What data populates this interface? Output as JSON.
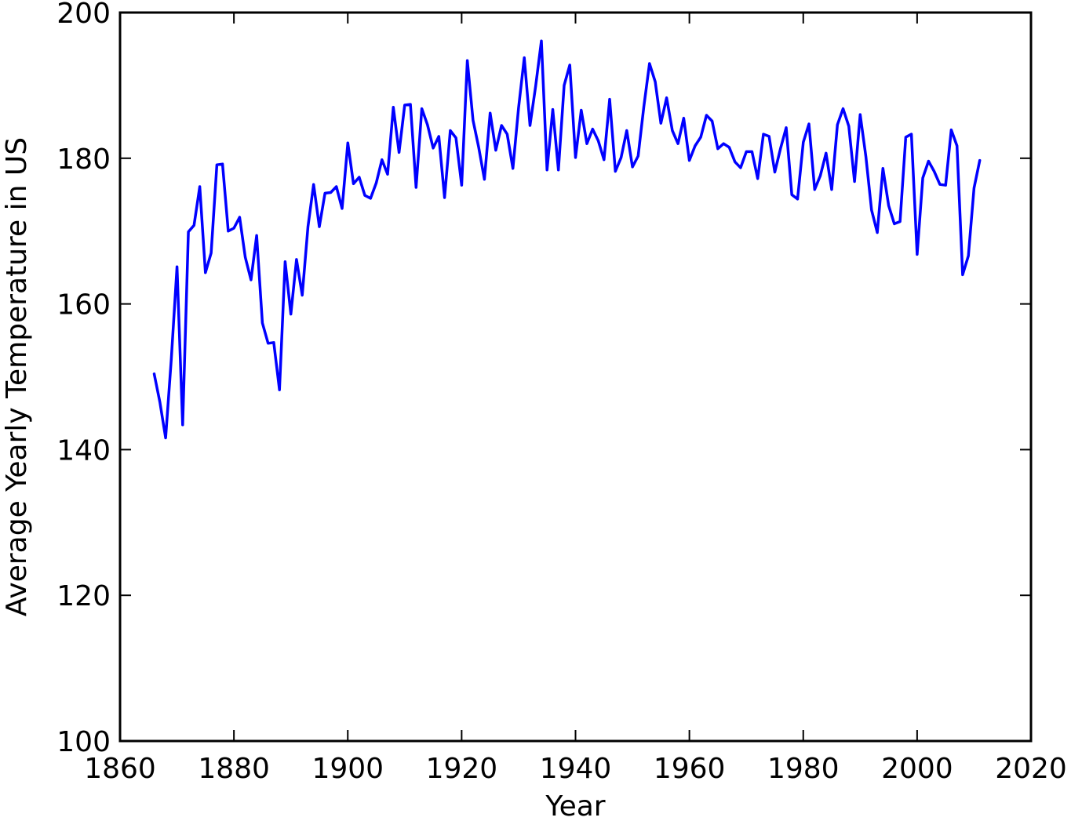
{
  "chart_data": {
    "type": "line",
    "title": "",
    "xlabel": "Year",
    "ylabel": "Average Yearly Temperature in US",
    "xlim": [
      1860,
      2020
    ],
    "ylim": [
      100,
      200
    ],
    "xticks": [
      1860,
      1880,
      1900,
      1920,
      1940,
      1960,
      1980,
      2000,
      2020
    ],
    "yticks": [
      100,
      120,
      140,
      160,
      180,
      200
    ],
    "grid": false,
    "legend": "none",
    "series": [
      {
        "color": "#0000ff",
        "x": [
          1866,
          1867,
          1868,
          1869,
          1870,
          1871,
          1872,
          1873,
          1874,
          1875,
          1876,
          1877,
          1878,
          1879,
          1880,
          1881,
          1882,
          1883,
          1884,
          1885,
          1886,
          1887,
          1888,
          1889,
          1890,
          1891,
          1892,
          1893,
          1894,
          1895,
          1896,
          1897,
          1898,
          1899,
          1900,
          1901,
          1902,
          1903,
          1904,
          1905,
          1906,
          1907,
          1908,
          1909,
          1910,
          1911,
          1912,
          1913,
          1914,
          1915,
          1916,
          1917,
          1918,
          1919,
          1920,
          1921,
          1922,
          1923,
          1924,
          1925,
          1926,
          1927,
          1928,
          1929,
          1930,
          1931,
          1932,
          1933,
          1934,
          1935,
          1936,
          1937,
          1938,
          1939,
          1940,
          1941,
          1942,
          1943,
          1944,
          1945,
          1946,
          1947,
          1948,
          1949,
          1950,
          1951,
          1952,
          1953,
          1954,
          1955,
          1956,
          1957,
          1958,
          1959,
          1960,
          1961,
          1962,
          1963,
          1964,
          1965,
          1966,
          1967,
          1968,
          1969,
          1970,
          1971,
          1972,
          1973,
          1974,
          1975,
          1976,
          1977,
          1978,
          1979,
          1980,
          1981,
          1982,
          1983,
          1984,
          1985,
          1986,
          1987,
          1988,
          1989,
          1990,
          1991,
          1992,
          1993,
          1994,
          1995,
          1996,
          1997,
          1998,
          1999,
          2000,
          2001,
          2002,
          2003,
          2004,
          2005,
          2006,
          2007,
          2008,
          2009,
          2010,
          2011
        ],
        "y": [
          150.4,
          146.5,
          141.6,
          152.4,
          165.1,
          143.4,
          169.9,
          170.8,
          176.1,
          164.3,
          167.0,
          179.1,
          179.2,
          170.0,
          170.4,
          171.9,
          166.4,
          163.3,
          169.4,
          157.4,
          154.6,
          154.7,
          148.2,
          165.8,
          158.6,
          166.1,
          161.2,
          170.6,
          176.4,
          170.6,
          175.2,
          175.3,
          176.1,
          173.1,
          182.1,
          176.5,
          177.4,
          174.9,
          174.5,
          176.6,
          179.8,
          177.8,
          187.0,
          180.8,
          187.3,
          187.4,
          176.0,
          186.8,
          184.6,
          181.4,
          183.0,
          174.6,
          183.8,
          182.8,
          176.3,
          193.4,
          185.2,
          181.5,
          177.1,
          186.2,
          181.1,
          184.5,
          183.3,
          178.6,
          186.9,
          193.8,
          184.5,
          189.9,
          196.1,
          178.4,
          186.7,
          178.4,
          190.0,
          192.8,
          180.1,
          186.6,
          182.0,
          184.0,
          182.4,
          179.8,
          188.1,
          178.2,
          180.1,
          183.8,
          178.8,
          180.3,
          187.1,
          193.0,
          190.5,
          184.8,
          188.3,
          183.8,
          182.0,
          185.5,
          179.7,
          181.7,
          182.9,
          185.9,
          185.1,
          181.3,
          182.0,
          181.5,
          179.5,
          178.7,
          180.9,
          180.9,
          177.2,
          183.3,
          183.0,
          178.1,
          181.3,
          184.2,
          175.0,
          174.4,
          182.2,
          184.7,
          175.7,
          177.6,
          180.7,
          175.7,
          184.6,
          186.8,
          184.4,
          176.8,
          186.0,
          180.2,
          172.9,
          169.8,
          178.6,
          173.5,
          171.0,
          171.3,
          182.9,
          183.3,
          166.8,
          177.3,
          179.6,
          178.2,
          176.4,
          176.3,
          183.9,
          181.7,
          164.0,
          166.6,
          175.9,
          179.7
        ]
      }
    ]
  }
}
